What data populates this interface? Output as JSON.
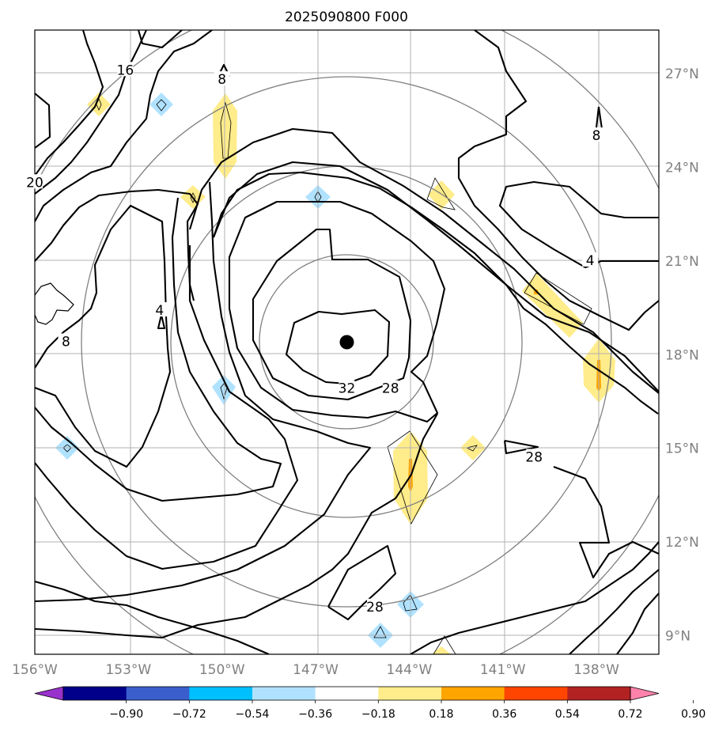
{
  "title": "2025090800 F000",
  "lat_labels": [
    {
      "value": 27,
      "text": "27°N"
    },
    {
      "value": 24,
      "text": "24°N"
    },
    {
      "value": 21,
      "text": "21°N"
    },
    {
      "value": 18,
      "text": "18°N"
    },
    {
      "value": 15,
      "text": "15°N"
    },
    {
      "value": 12,
      "text": "12°N"
    },
    {
      "value": 9,
      "text": "9°N"
    }
  ],
  "lon_labels": [
    {
      "value": -156,
      "text": "156°W"
    },
    {
      "value": -153,
      "text": "153°W"
    },
    {
      "value": -150,
      "text": "150°W"
    },
    {
      "value": -147,
      "text": "147°W"
    },
    {
      "value": -144,
      "text": "144°W"
    },
    {
      "value": -141,
      "text": "141°W"
    },
    {
      "value": -138,
      "text": "138°W"
    }
  ],
  "map_extent": {
    "lon": [
      -156,
      -136
    ],
    "lat": [
      8.4,
      28.4
    ]
  },
  "storm_center": {
    "lon": -146,
    "lat": 18.4
  },
  "contour_labels": [
    {
      "text": "16",
      "lon": -153.1,
      "lat": 27.1
    },
    {
      "text": "20",
      "lon": -156.0,
      "lat": 23.5
    },
    {
      "text": "8",
      "lon": -150.0,
      "lat": 26.8
    },
    {
      "text": "4",
      "lon": -152.0,
      "lat": 19.4
    },
    {
      "text": "8",
      "lon": -155.0,
      "lat": 18.4
    },
    {
      "text": "4",
      "lon": -138.2,
      "lat": 21.0
    },
    {
      "text": "8",
      "lon": -138.0,
      "lat": 25.0
    },
    {
      "text": "32",
      "lon": -146.0,
      "lat": 16.9
    },
    {
      "text": "28",
      "lon": -144.6,
      "lat": 16.9
    },
    {
      "text": "28",
      "lon": -140.0,
      "lat": 14.7
    },
    {
      "text": "28",
      "lon": -145.1,
      "lat": 9.9
    }
  ],
  "colorbar": {
    "ticks": [
      "−0.90",
      "−0.72",
      "−0.54",
      "−0.36",
      "−0.18",
      "0.18",
      "0.36",
      "0.54",
      "0.72",
      "0.90"
    ],
    "colors": [
      "#9932cc",
      "#00008b",
      "#3a5fcd",
      "#00bfff",
      "#b0e2ff",
      "#ffffff",
      "#ffec8b",
      "#ffa500",
      "#ff4500",
      "#b22222",
      "#ff82ab"
    ],
    "under_color": "#9932cc",
    "over_color": "#ff82ab"
  },
  "colors": {
    "grid": "#b0b0b0",
    "range_rings": "#808080",
    "contours": "#000000"
  }
}
